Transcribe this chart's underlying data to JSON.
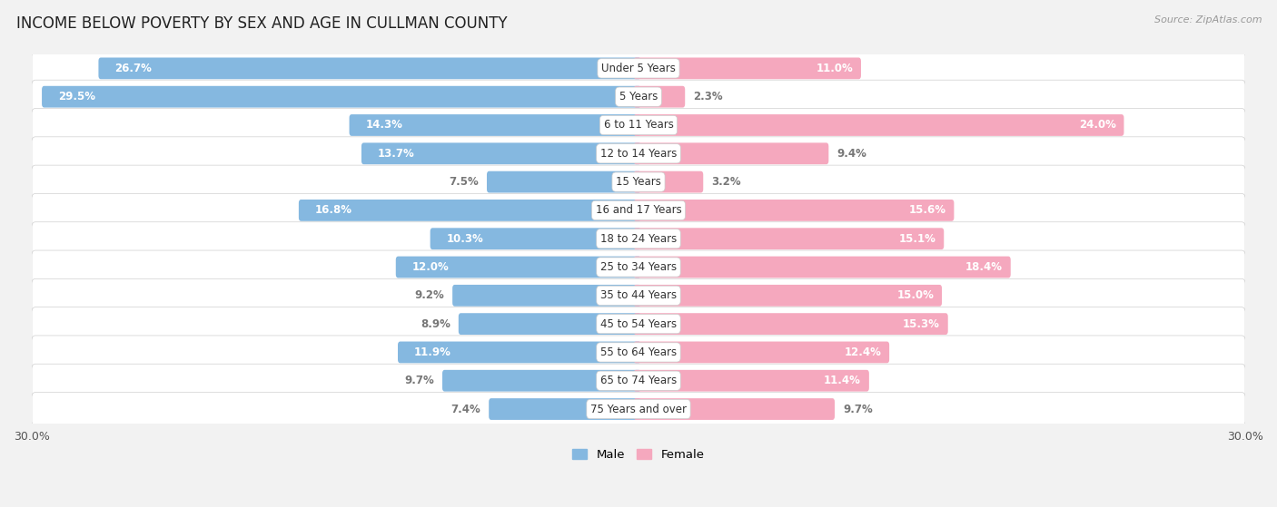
{
  "title": "INCOME BELOW POVERTY BY SEX AND AGE IN CULLMAN COUNTY",
  "source": "Source: ZipAtlas.com",
  "categories": [
    "Under 5 Years",
    "5 Years",
    "6 to 11 Years",
    "12 to 14 Years",
    "15 Years",
    "16 and 17 Years",
    "18 to 24 Years",
    "25 to 34 Years",
    "35 to 44 Years",
    "45 to 54 Years",
    "55 to 64 Years",
    "65 to 74 Years",
    "75 Years and over"
  ],
  "male": [
    26.7,
    29.5,
    14.3,
    13.7,
    7.5,
    16.8,
    10.3,
    12.0,
    9.2,
    8.9,
    11.9,
    9.7,
    7.4
  ],
  "female": [
    11.0,
    2.3,
    24.0,
    9.4,
    3.2,
    15.6,
    15.1,
    18.4,
    15.0,
    15.3,
    12.4,
    11.4,
    9.7
  ],
  "male_color": "#85b8e0",
  "female_color": "#f5a8be",
  "male_label_color": "#777777",
  "female_label_color": "#777777",
  "row_bg_color": "#e8e8e8",
  "row_border_color": "#d0d0d0",
  "background_color": "#f2f2f2",
  "xlim": 30.0,
  "legend_male": "Male",
  "legend_female": "Female",
  "title_fontsize": 12,
  "label_fontsize": 8.5,
  "category_fontsize": 8.5,
  "source_fontsize": 8
}
